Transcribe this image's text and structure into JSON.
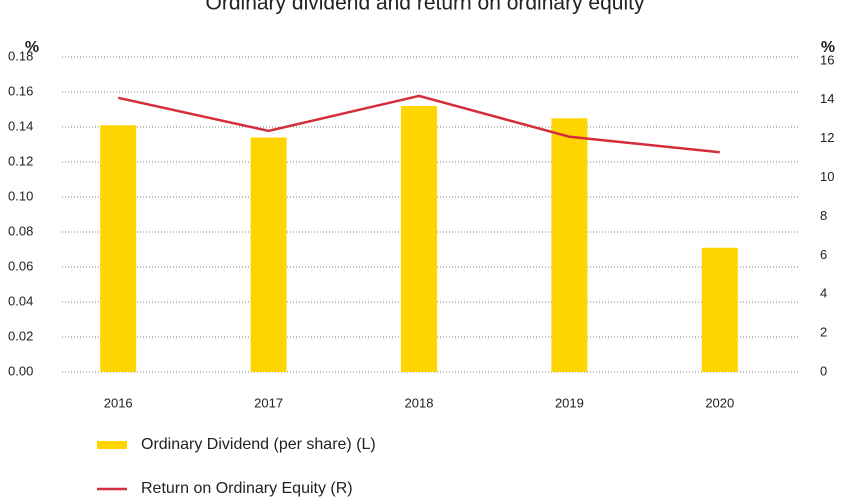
{
  "chart_data": {
    "type": "bar",
    "title": "Ordinary dividend and return on ordinary equity",
    "ylabel": "%",
    "y2label": "%",
    "categories": [
      "2016",
      "2017",
      "2018",
      "2019",
      "2020"
    ],
    "series": [
      {
        "name": "Ordinary Dividend (per share) (L)",
        "type": "bar",
        "color": "#ffd500",
        "values": [
          0.141,
          0.134,
          0.152,
          0.145,
          0.071
        ]
      },
      {
        "name": "Return on Ordinary Equity (R)",
        "type": "line",
        "axis": "y2",
        "color": "#d42e3a",
        "values": [
          14.1,
          12.4,
          14.2,
          12.1,
          11.3
        ]
      }
    ],
    "ylim": [
      0,
      0.18
    ],
    "yticks": [
      {
        "value": 0,
        "label": "0.00"
      },
      {
        "value": 0.02,
        "label": "0.02"
      },
      {
        "value": 0.04,
        "label": "0.04"
      },
      {
        "value": 0.06,
        "label": "0.06"
      },
      {
        "value": 0.08,
        "label": "0.08"
      },
      {
        "value": 0.1,
        "label": "0.10"
      },
      {
        "value": 0.12,
        "label": "0.12"
      },
      {
        "value": 0.14,
        "label": "0.14"
      },
      {
        "value": 0.16,
        "label": "0.16"
      },
      {
        "value": 0.18,
        "label": "0.18"
      }
    ],
    "y2lim": [
      0,
      16.2
    ],
    "y2ticks": [
      0,
      2,
      4,
      6,
      8,
      10,
      12,
      14,
      16
    ],
    "grid": true
  }
}
